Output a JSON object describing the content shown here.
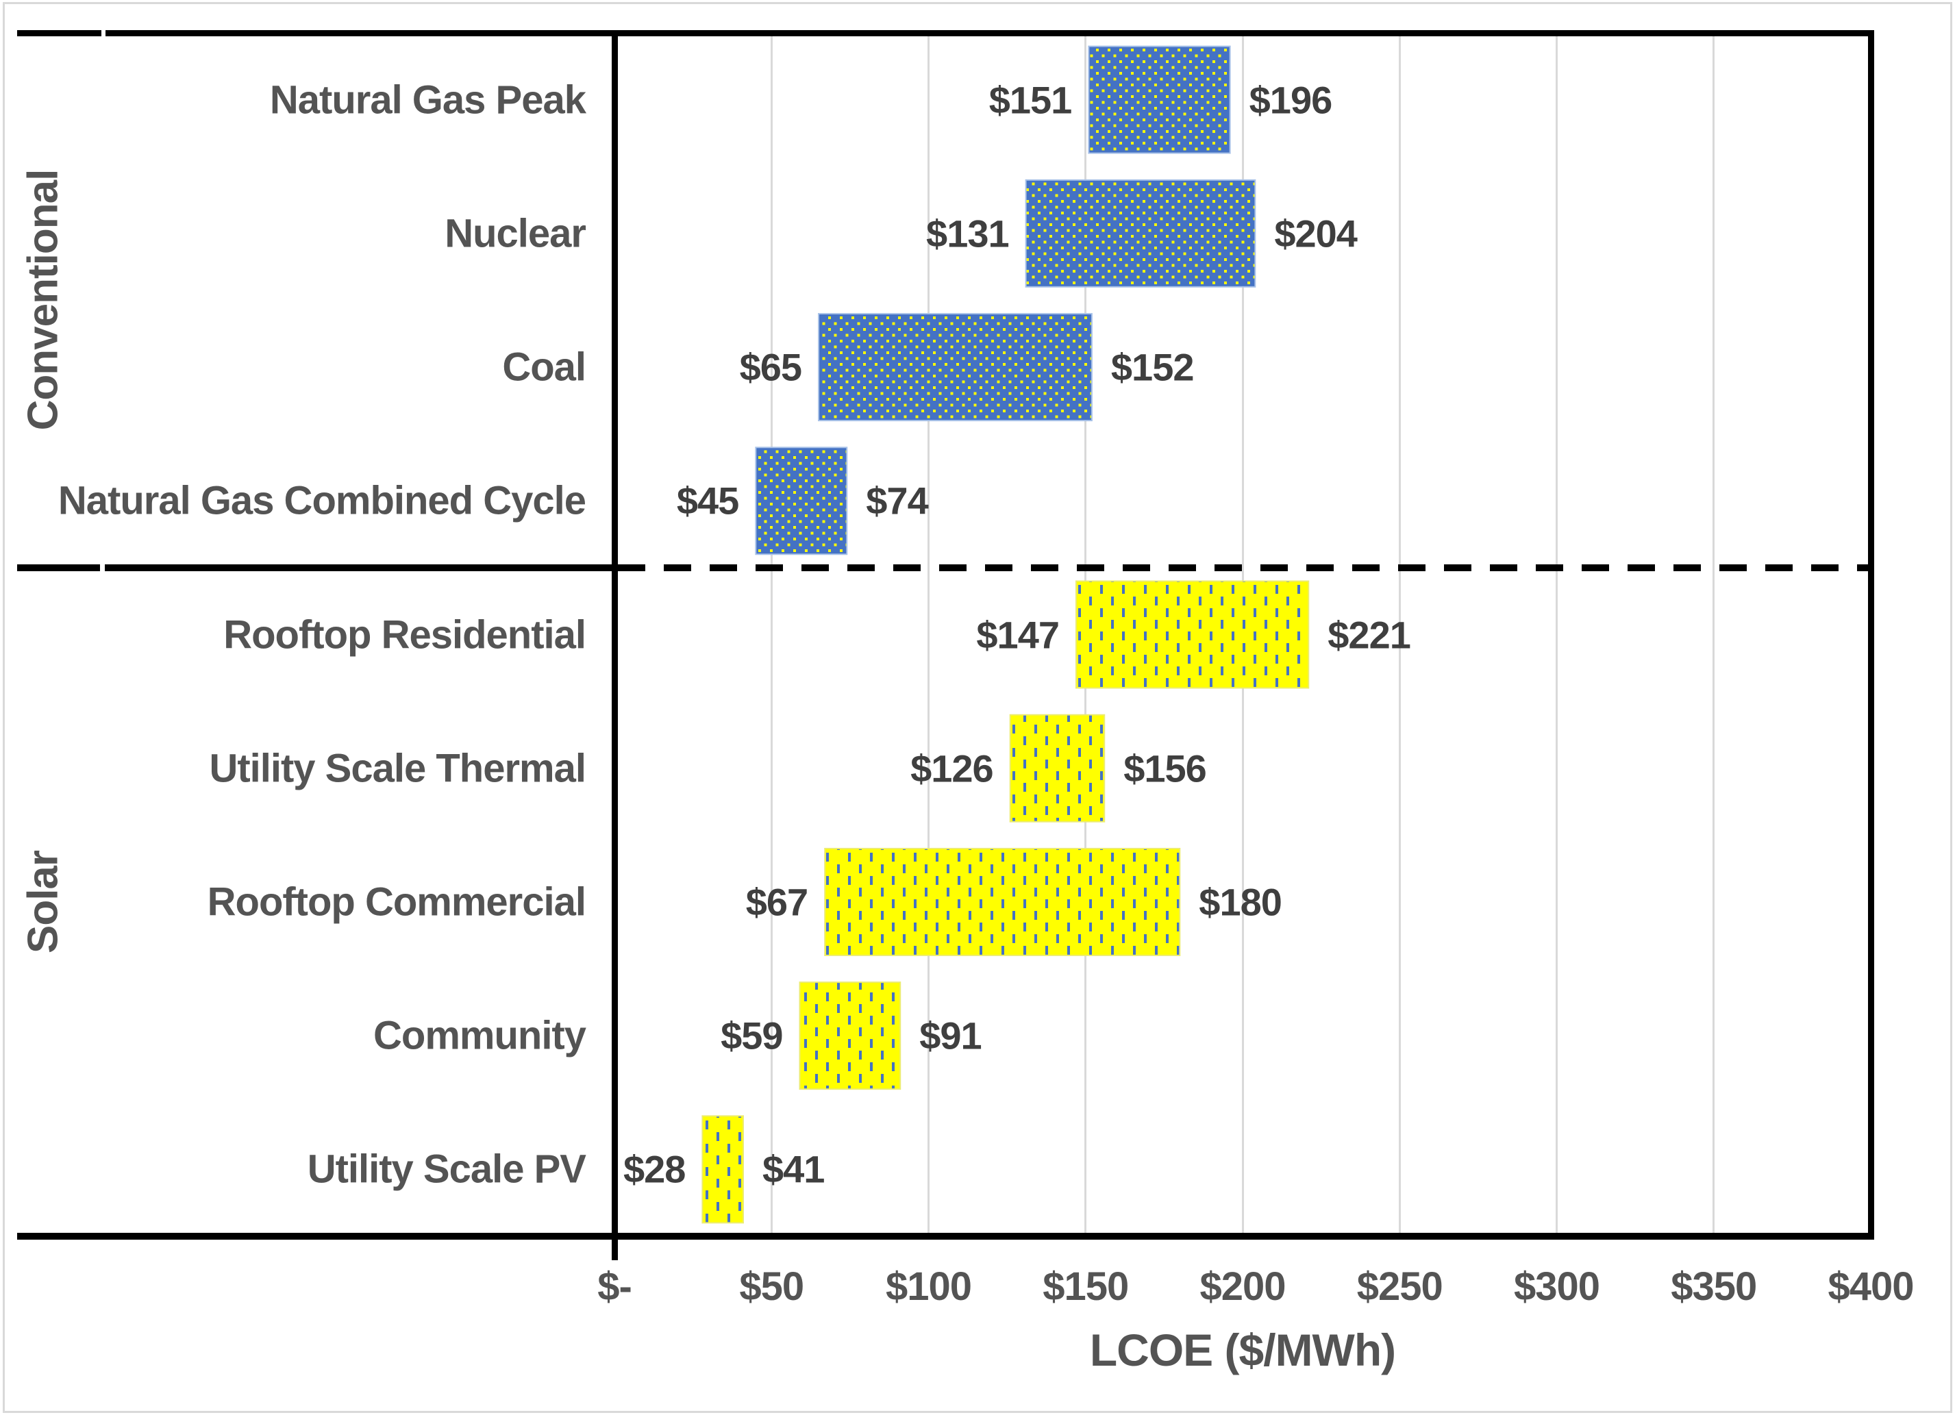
{
  "chart_data": {
    "type": "bar",
    "subtype": "horizontal-range-bars",
    "title": "",
    "xlabel": "LCOE ($/MWh)",
    "ylabel": "",
    "xlim": [
      0,
      400
    ],
    "grid": true,
    "legend": false,
    "x_ticks": [
      {
        "value": 0,
        "label": "$-"
      },
      {
        "value": 50,
        "label": "$50"
      },
      {
        "value": 100,
        "label": "$100"
      },
      {
        "value": 150,
        "label": "$150"
      },
      {
        "value": 200,
        "label": "$200"
      },
      {
        "value": 250,
        "label": "$250"
      },
      {
        "value": 300,
        "label": "$300"
      },
      {
        "value": 350,
        "label": "$350"
      },
      {
        "value": 400,
        "label": "$400"
      }
    ],
    "groups": [
      {
        "name": "Conventional",
        "pattern": "yellow-dots-on-blue",
        "fill": "#4472C4",
        "pattern_color": "#FFFF00",
        "bar_border": "#A8C2E8",
        "rows": [
          {
            "label": "Natural Gas Peak",
            "min": 151,
            "max": 196,
            "min_label": "$151",
            "max_label": "$196"
          },
          {
            "label": "Nuclear",
            "min": 131,
            "max": 204,
            "min_label": "$131",
            "max_label": "$204"
          },
          {
            "label": "Coal",
            "min": 65,
            "max": 152,
            "min_label": "$65",
            "max_label": "$152"
          },
          {
            "label": "Natural Gas Combined Cycle",
            "min": 45,
            "max": 74,
            "min_label": "$45",
            "max_label": "$74"
          }
        ]
      },
      {
        "name": "Solar",
        "pattern": "blue-dashes-on-yellow",
        "fill": "#FFFF00",
        "pattern_color": "#4472C4",
        "bar_border": "#ECEC70",
        "rows": [
          {
            "label": "Rooftop Residential",
            "min": 147,
            "max": 221,
            "min_label": "$147",
            "max_label": "$221"
          },
          {
            "label": "Utility Scale Thermal",
            "min": 126,
            "max": 156,
            "min_label": "$126",
            "max_label": "$156"
          },
          {
            "label": "Rooftop Commercial",
            "min": 67,
            "max": 180,
            "min_label": "$67",
            "max_label": "$180"
          },
          {
            "label": "Community",
            "min": 59,
            "max": 91,
            "min_label": "$59",
            "max_label": "$91"
          },
          {
            "label": "Utility Scale PV",
            "min": 28,
            "max": 41,
            "min_label": "$28",
            "max_label": "$41"
          }
        ]
      }
    ],
    "style": {
      "axis_line_color": "#000000",
      "gridline_color": "#D9D9D9",
      "section_separator": "dashed-black",
      "text_color": "#545454",
      "value_text_color": "#3F3F3F",
      "background": "#FFFFFF",
      "frame_color": "#D9D9D9"
    }
  }
}
